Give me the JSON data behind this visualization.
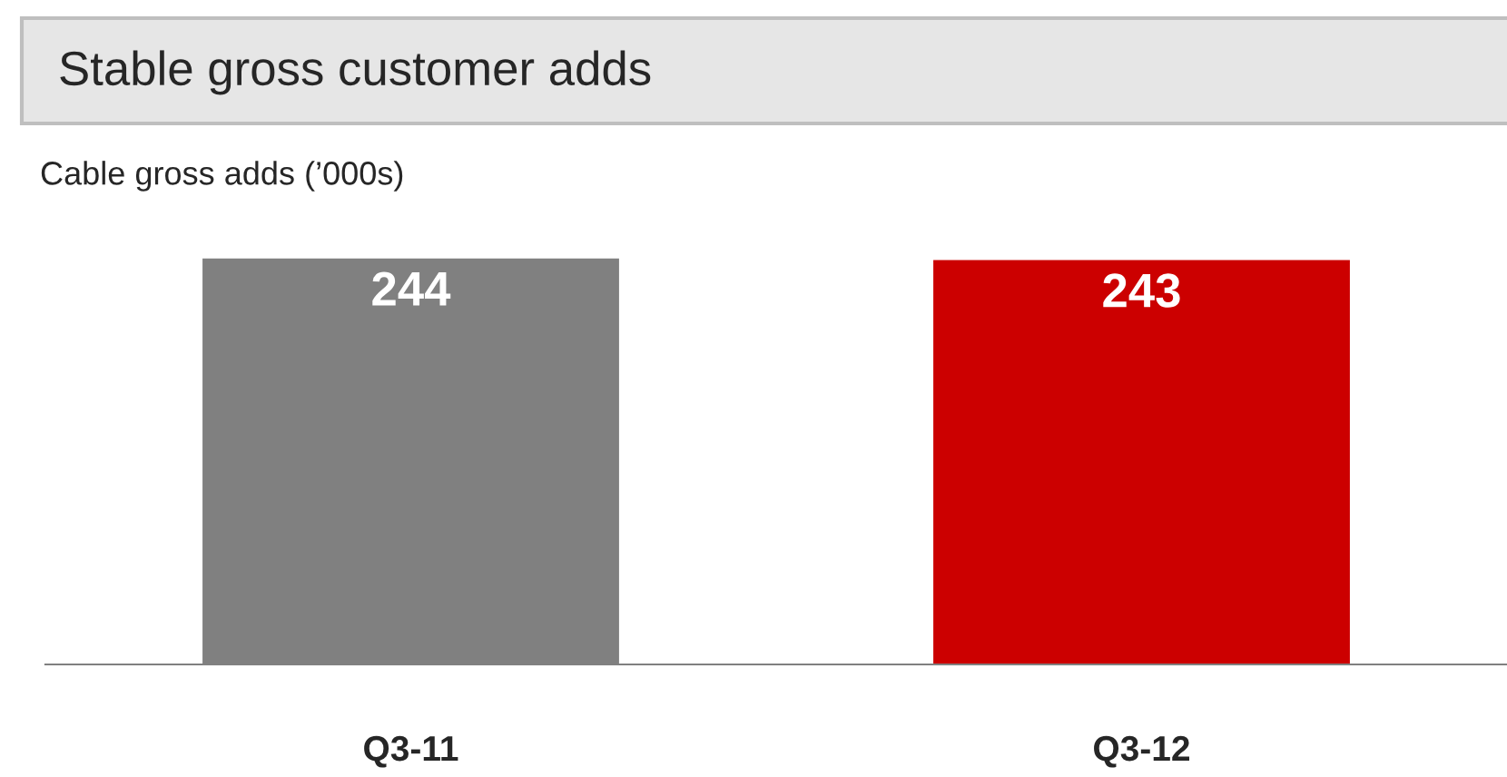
{
  "chart_data": {
    "type": "bar",
    "title": "Stable gross customer adds",
    "subtitle": "Cable gross adds (’000s)",
    "categories": [
      "Q3-11",
      "Q3-12"
    ],
    "values": [
      244,
      243
    ],
    "colors": [
      "#808080",
      "#cc0000"
    ],
    "data_labels": true,
    "grid": false,
    "legend": false
  }
}
